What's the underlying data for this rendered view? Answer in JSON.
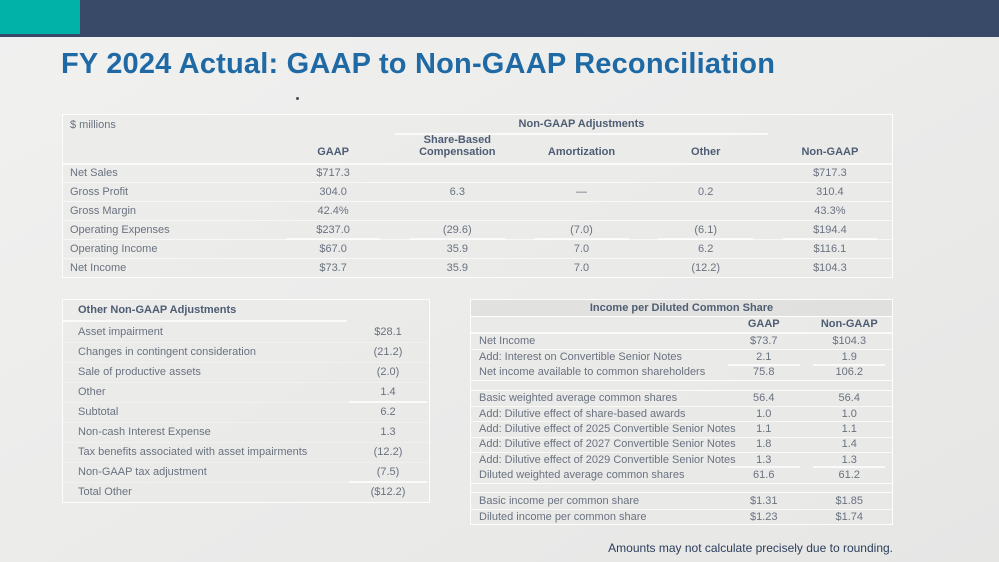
{
  "slide": {
    "title": "FY 2024 Actual: GAAP to Non-GAAP Reconciliation",
    "footnote": "Amounts may not calculate precisely due to rounding.",
    "colors": {
      "teal": "#00b2a8",
      "navy": "#394a68",
      "title_blue": "#1f6aa5",
      "background": "#ebebea"
    }
  },
  "recon_table": {
    "units_label": "$ millions",
    "group_header": "Non-GAAP Adjustments",
    "columns": {
      "gaap": "GAAP",
      "sbc": "Share-Based Compensation",
      "amort": "Amortization",
      "other": "Other",
      "nongaap": "Non-GAAP"
    },
    "rows": [
      {
        "label": "Net Sales",
        "gaap": "$717.3",
        "sbc": "",
        "amort": "",
        "other": "",
        "nongaap": "$717.3"
      },
      {
        "label": "Gross Profit",
        "gaap": "304.0",
        "sbc": "6.3",
        "amort": "—",
        "other": "0.2",
        "nongaap": "310.4"
      },
      {
        "label": "Gross Margin",
        "gaap": "42.4%",
        "sbc": "",
        "amort": "",
        "other": "",
        "nongaap": "43.3%"
      },
      {
        "label": "Operating Expenses",
        "gaap": "$237.0",
        "sbc": "(29.6)",
        "amort": "(7.0)",
        "other": "(6.1)",
        "nongaap": "$194.4"
      },
      {
        "label": "Operating Income",
        "gaap": "$67.0",
        "sbc": "35.9",
        "amort": "7.0",
        "other": "6.2",
        "nongaap": "$116.1"
      },
      {
        "label": "Net Income",
        "gaap": "$73.7",
        "sbc": "35.9",
        "amort": "7.0",
        "other": "(12.2)",
        "nongaap": "$104.3"
      }
    ]
  },
  "other_adjustments": {
    "title": "Other Non-GAAP Adjustments",
    "rows": [
      {
        "label": "Asset impairment",
        "value": "$28.1"
      },
      {
        "label": "Changes in contingent consideration",
        "value": "(21.2)"
      },
      {
        "label": "Sale of productive assets",
        "value": "(2.0)"
      },
      {
        "label": "Other",
        "value": "1.4"
      },
      {
        "label": "Subtotal",
        "value": "6.2"
      },
      {
        "label": "Non-cash Interest Expense",
        "value": "1.3"
      },
      {
        "label": "Tax benefits associated with asset impairments",
        "value": "(12.2)"
      },
      {
        "label": "Non-GAAP tax adjustment",
        "value": "(7.5)"
      },
      {
        "label": "Total Other",
        "value": "($12.2)"
      }
    ]
  },
  "eps_table": {
    "title": "Income per Diluted Common Share",
    "columns": {
      "gaap": "GAAP",
      "nongaap": "Non-GAAP"
    },
    "rows": [
      {
        "label": "Net Income",
        "gaap": "$73.7",
        "nongaap": "$104.3"
      },
      {
        "label": "Add: Interest on Convertible Senior Notes",
        "gaap": "2.1",
        "nongaap": "1.9"
      },
      {
        "label": "Net income available to common shareholders",
        "gaap": "75.8",
        "nongaap": "106.2"
      },
      {
        "label": "Basic weighted average common shares",
        "gaap": "56.4",
        "nongaap": "56.4"
      },
      {
        "label": "Add: Dilutive effect of share-based awards",
        "gaap": "1.0",
        "nongaap": "1.0"
      },
      {
        "label": "Add: Dilutive effect of 2025 Convertible Senior Notes",
        "gaap": "1.1",
        "nongaap": "1.1"
      },
      {
        "label": "Add: Dilutive effect of 2027 Convertible Senior Notes",
        "gaap": "1.8",
        "nongaap": "1.4"
      },
      {
        "label": "Add: Dilutive effect of 2029 Convertible Senior Notes",
        "gaap": "1.3",
        "nongaap": "1.3"
      },
      {
        "label": "Diluted weighted average common shares",
        "gaap": "61.6",
        "nongaap": "61.2"
      },
      {
        "label": "Basic income per common share",
        "gaap": "$1.31",
        "nongaap": "$1.85"
      },
      {
        "label": "Diluted income per common share",
        "gaap": "$1.23",
        "nongaap": "$1.74"
      }
    ]
  }
}
